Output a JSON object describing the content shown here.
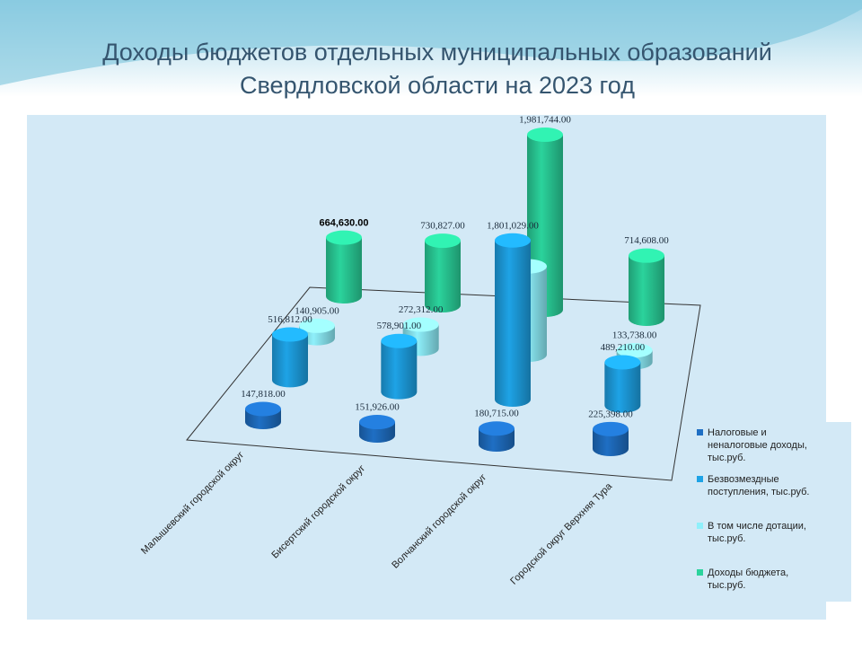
{
  "chart_data": {
    "type": "bar3d",
    "title": "Доходы бюджетов отдельных муниципальных образований Свердловской области на 2023 год",
    "categories": [
      "Малышевский городской округ",
      "Бисертский городской округ",
      "Волчанский городской округ",
      "Городской округ Верхняя Тура"
    ],
    "series": [
      {
        "name": "Налоговые и неналоговые доходы, тыс.руб.",
        "color": "#1f6fc4",
        "values": [
          147818,
          151926,
          180715,
          225398
        ],
        "value_labels": [
          "147,818.00",
          "151,926.00",
          "180,715.00",
          "225,398.00"
        ]
      },
      {
        "name": "Безвозмездные поступления, тыс.руб.",
        "color": "#1ea3e6",
        "values": [
          516812,
          578901,
          1801029,
          489210
        ],
        "value_labels": [
          "516,812.00",
          "578,901.00",
          "1,801,029.00",
          "489,210.00"
        ]
      },
      {
        "name": "В том числе дотации, тыс.руб.",
        "color": "#8ff0fb",
        "values": [
          140905,
          272312,
          1000000,
          133738
        ],
        "value_labels": [
          "140,905.00",
          "272,312.00",
          null,
          "133,738.00"
        ]
      },
      {
        "name": "Доходы бюджета, тыс.руб.",
        "color": "#2bd39c",
        "values": [
          664630,
          730827,
          1981744,
          714608
        ],
        "value_labels": [
          "664,630.00",
          "730,827.00",
          "1,981,744.00",
          "714,608.00"
        ]
      }
    ],
    "legend": "right"
  }
}
